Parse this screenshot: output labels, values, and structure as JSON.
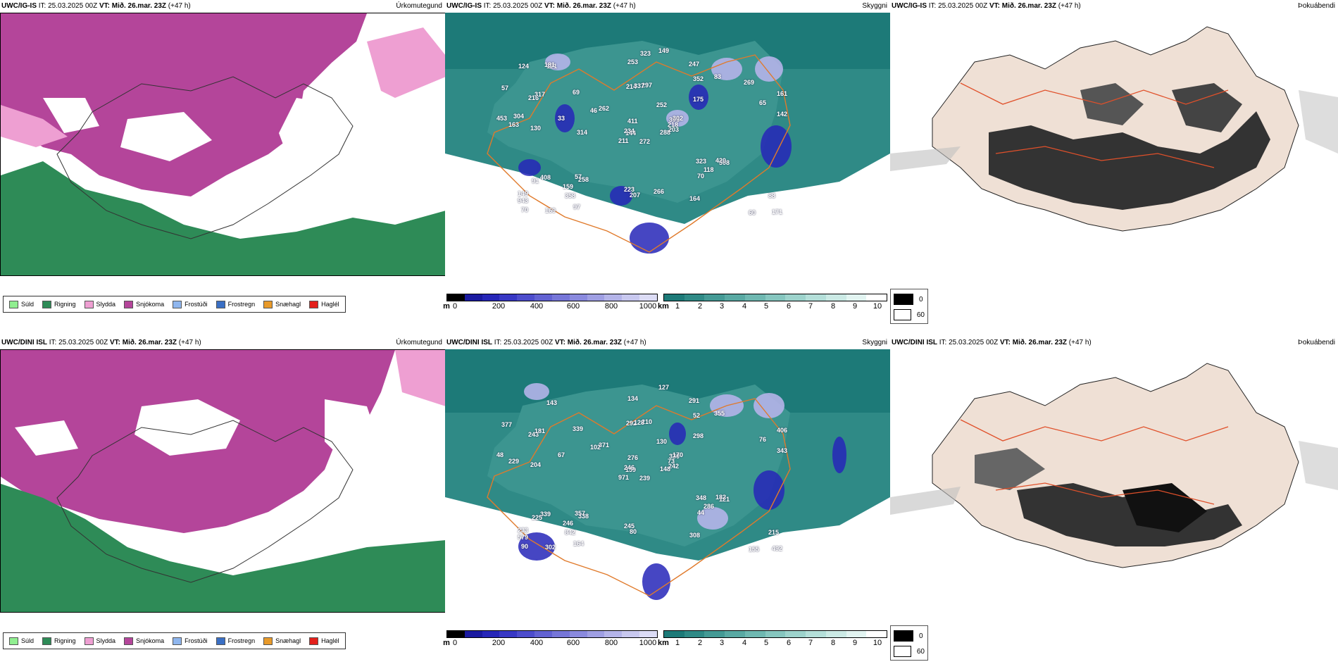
{
  "rows": [
    {
      "model": "UWC/IG-IS",
      "it_label": "IT:",
      "init_time": "25.03.2025 00Z",
      "vt_label": "VT:",
      "valid_time": "Mið. 26.mar. 23Z",
      "lead": "(+47 h)",
      "titles": {
        "precip": "Úrkomutegund",
        "cloud": "Skyggni",
        "fog": "Þokuábendi"
      },
      "cloud_labels": [
        "272",
        "216",
        "144",
        "149",
        "395",
        "258",
        "247",
        "297",
        "352",
        "288",
        "121",
        "171",
        "130",
        "161",
        "211",
        "175",
        "169",
        "214",
        "252",
        "408",
        "262",
        "943",
        "358",
        "337",
        "302",
        "308",
        "317",
        "253",
        "163",
        "323",
        "142",
        "234",
        "223",
        "411",
        "69",
        "83",
        "57",
        "60",
        "88",
        "420",
        "149",
        "46",
        "33",
        "70",
        "97",
        "453",
        "218",
        "70",
        "207",
        "203",
        "91",
        "65",
        "57",
        "118",
        "164",
        "159",
        "181",
        "124",
        "266",
        "269",
        "323",
        "314",
        "304"
      ]
    },
    {
      "model": "UWC/DINI ISL",
      "it_label": "IT:",
      "init_time": "25.03.2025 00Z",
      "vt_label": "VT:",
      "valid_time": "Mið. 26.mar. 23Z",
      "lead": "(+47 h)",
      "titles": {
        "precip": "Úrkomutegund",
        "cloud": "Skyggni",
        "fog": "Þokuábendi"
      },
      "cloud_labels": [
        "239",
        "243",
        "159",
        "233",
        "330",
        "338",
        "291",
        "210",
        "52",
        "148",
        "143",
        "492",
        "204",
        "406",
        "971",
        "298",
        "302",
        "292",
        "130",
        "339",
        "371",
        "579",
        "842",
        "128",
        "170",
        "121",
        "181",
        "134",
        "229",
        "348",
        "343",
        "246",
        "245",
        "276",
        "339",
        "355",
        "357",
        "155",
        "215",
        "182",
        "127",
        "102",
        "67",
        "44",
        "164",
        "48",
        "73",
        "90",
        "80",
        "242",
        "225",
        "76",
        "377",
        "286",
        "308",
        "246"
      ]
    }
  ],
  "precip_legend": [
    {
      "label": "Súld",
      "color": "#90ee90"
    },
    {
      "label": "Rigning",
      "color": "#2e8b57"
    },
    {
      "label": "Slydda",
      "color": "#ee9fd2"
    },
    {
      "label": "Snjókoma",
      "color": "#b4459a"
    },
    {
      "label": "Frostúði",
      "color": "#8fb6ee"
    },
    {
      "label": "Frostregn",
      "color": "#3a6fc4"
    },
    {
      "label": "Snæhagl",
      "color": "#e89a2a"
    },
    {
      "label": "Haglél",
      "color": "#e3201b"
    }
  ],
  "cloud_base_scale": {
    "unit": "m",
    "ticks": [
      "0",
      "200",
      "400",
      "600",
      "800",
      "1000"
    ],
    "colors": [
      "#000000",
      "#1a1aa0",
      "#2626b8",
      "#3838c4",
      "#4d4dcc",
      "#6262d2",
      "#7676d8",
      "#8a8ade",
      "#9f9fe3",
      "#b4b4e9",
      "#c8c8ef",
      "#dcdcf5"
    ]
  },
  "visibility_scale": {
    "unit": "km",
    "ticks": [
      "1",
      "2",
      "3",
      "4",
      "5",
      "6",
      "7",
      "8",
      "9",
      "10"
    ],
    "colors": [
      "#1d7a78",
      "#2f8a86",
      "#449a95",
      "#59a9a3",
      "#6fb8b1",
      "#86c6bf",
      "#9dd3cc",
      "#b4dfd9",
      "#cbeae5",
      "#e2f4f1",
      "#ffffff"
    ]
  },
  "fog_legend": [
    {
      "label": "0",
      "color": "#000000"
    },
    {
      "label": "60",
      "color": "#ffffff"
    }
  ]
}
